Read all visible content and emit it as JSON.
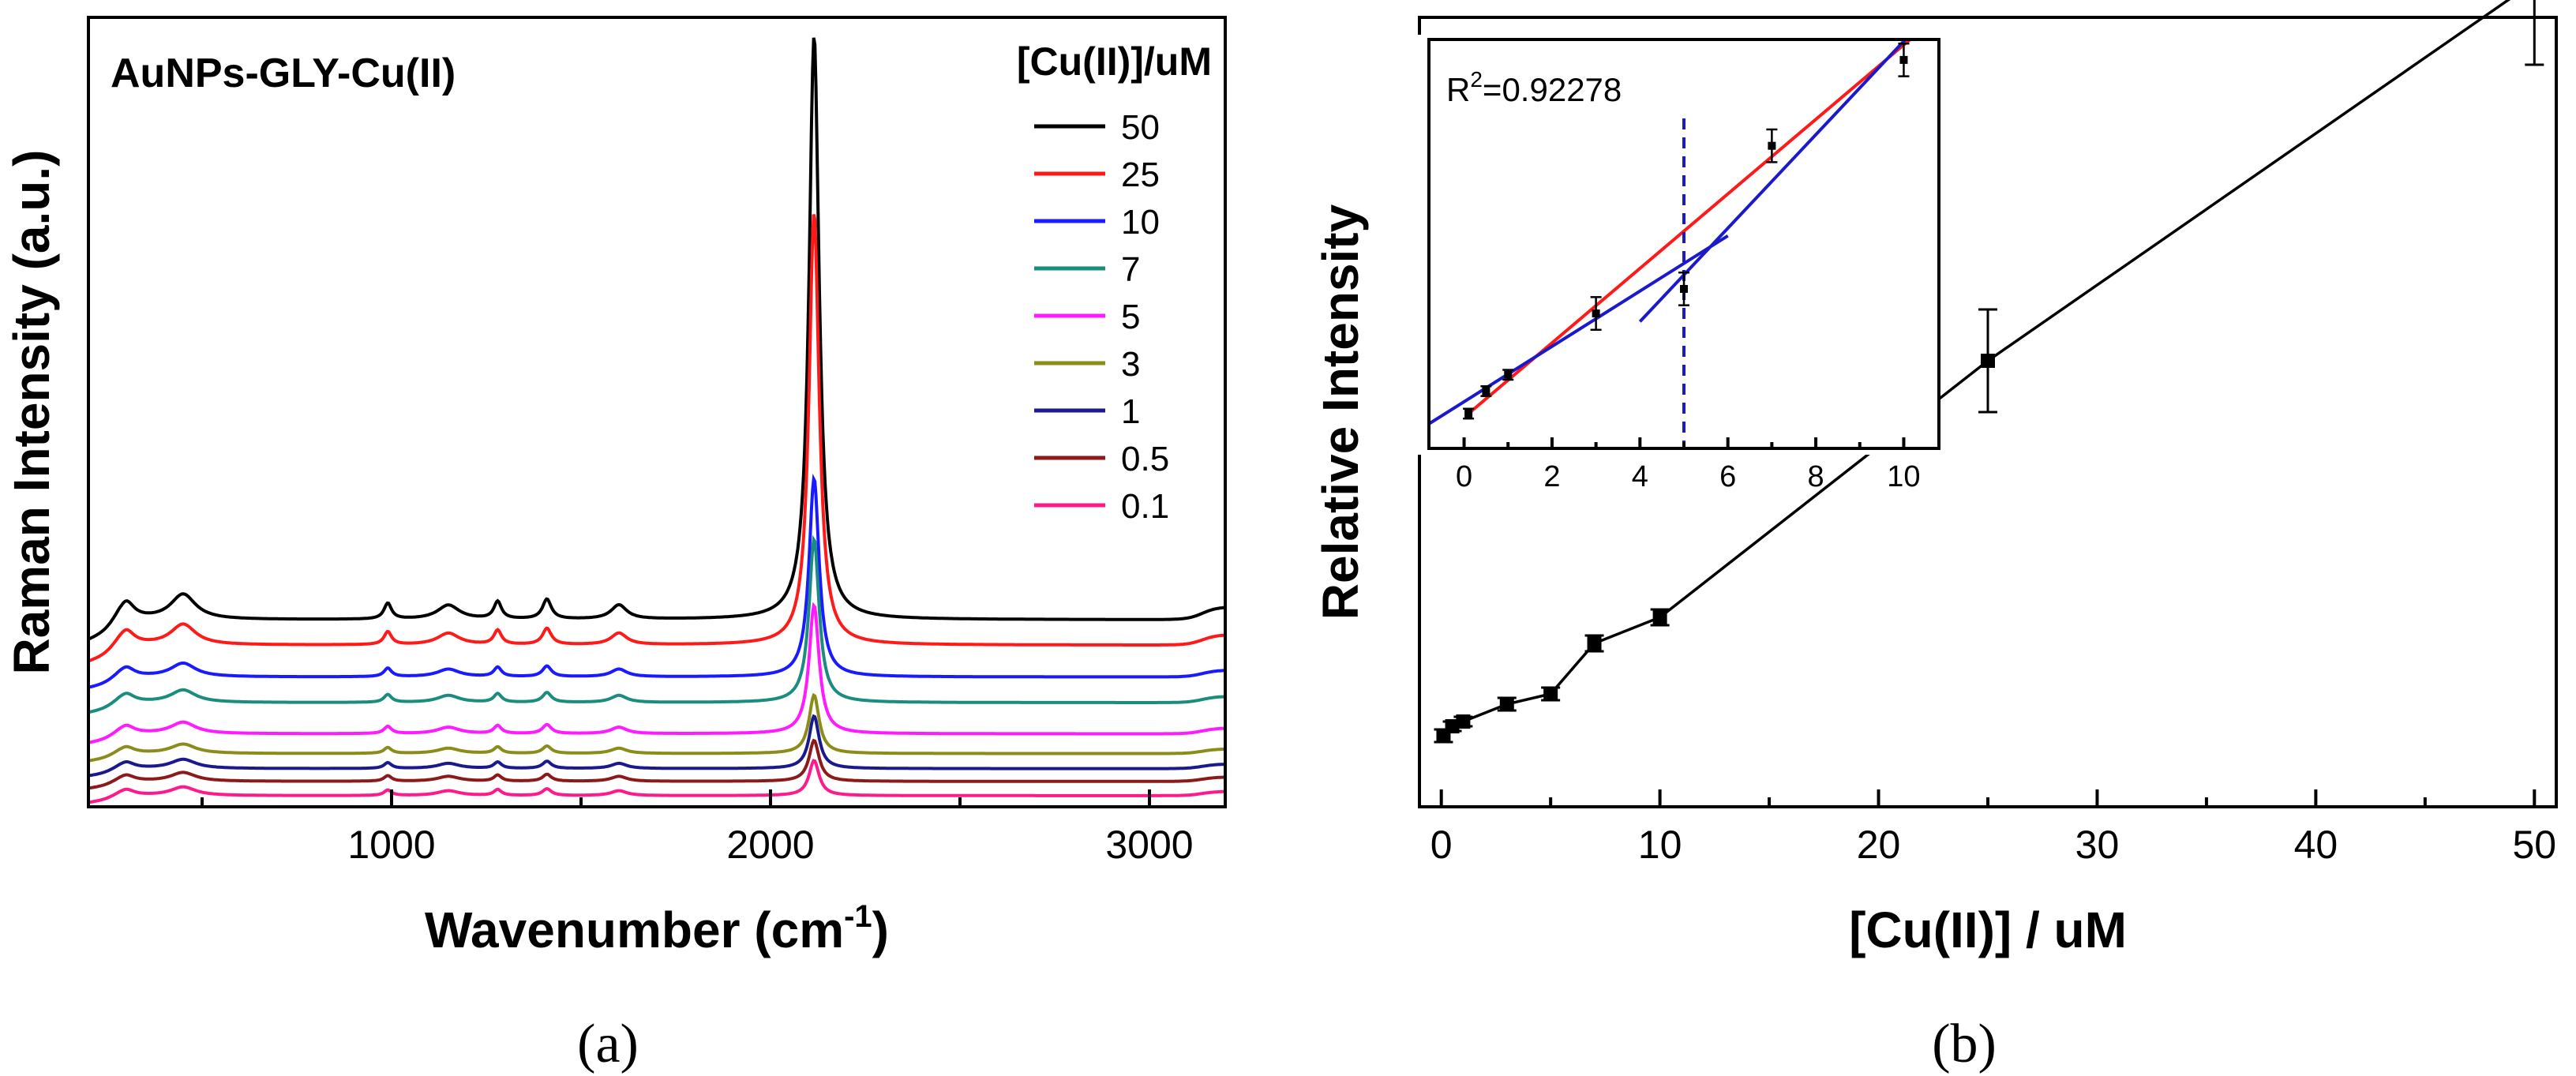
{
  "chart_data": [
    {
      "type": "line",
      "panel_label": "(a)",
      "title": "AuNPs-GLY-Cu(II)",
      "xlabel_main": "Wavenumber (cm",
      "xlabel_sup": "-1",
      "xlabel_tail": ")",
      "ylabel": "Raman Intensity (a.u.)",
      "xlim": [
        200,
        3200
      ],
      "ylim": [
        0,
        100
      ],
      "xticks": [
        1000,
        2000,
        3000
      ],
      "legend_title": "[Cu(II)]/uM",
      "legend_position": "top-right",
      "series": [
        {
          "name": "50",
          "color": "#000000",
          "baseline": 22.5,
          "scale": 1.0
        },
        {
          "name": "25",
          "color": "#ff1a1a",
          "baseline": 19.5,
          "scale": 0.74
        },
        {
          "name": "10",
          "color": "#1a1aff",
          "baseline": 15.8,
          "scale": 0.34
        },
        {
          "name": "7",
          "color": "#1a8c80",
          "baseline": 12.6,
          "scale": 0.28
        },
        {
          "name": "5",
          "color": "#ff1aff",
          "baseline": 8.7,
          "scale": 0.22
        },
        {
          "name": "3",
          "color": "#8c8c1a",
          "baseline": 6.3,
          "scale": 0.1
        },
        {
          "name": "1",
          "color": "#1a1a8c",
          "baseline": 4.4,
          "scale": 0.09
        },
        {
          "name": "0.5",
          "color": "#8c1a1a",
          "baseline": 2.8,
          "scale": 0.07
        },
        {
          "name": "0.1",
          "color": "#ff1a8c",
          "baseline": 1.0,
          "scale": 0.06
        }
      ],
      "peaks": [
        {
          "x": 300,
          "h": 2.2,
          "w": 25
        },
        {
          "x": 450,
          "h": 3.2,
          "w": 40
        },
        {
          "x": 990,
          "h": 2.0,
          "w": 12
        },
        {
          "x": 1150,
          "h": 1.8,
          "w": 35
        },
        {
          "x": 1280,
          "h": 2.2,
          "w": 12
        },
        {
          "x": 1410,
          "h": 2.5,
          "w": 14
        },
        {
          "x": 1600,
          "h": 1.8,
          "w": 25
        },
        {
          "x": 2115,
          "h": 74.0,
          "w": 16
        }
      ]
    },
    {
      "type": "line",
      "panel_label": "(b)",
      "xlabel": "[Cu(II)] / uM",
      "ylabel": "Relative Intensity",
      "xlim": [
        -1,
        51
      ],
      "ylim": [
        0,
        100
      ],
      "xticks": [
        0,
        10,
        20,
        30,
        40,
        50
      ],
      "x": [
        0.1,
        0.5,
        1,
        3,
        5,
        7,
        10,
        25,
        50
      ],
      "y": [
        9.0,
        10.2,
        10.8,
        13.0,
        14.3,
        20.7,
        24.0,
        56.5,
        104.5
      ],
      "err": [
        0.8,
        0.6,
        0.6,
        0.8,
        0.8,
        1.0,
        1.0,
        6.5,
        10.5
      ],
      "inset": {
        "annotation": "R²=0.92278",
        "r2_base": "R",
        "r2_sup": "2",
        "r2_value": "=0.92278",
        "xlim": [
          -0.8,
          10.8
        ],
        "ylim": [
          0,
          100
        ],
        "xticks": [
          0,
          2,
          4,
          6,
          8,
          10
        ],
        "x": [
          0.1,
          0.5,
          1,
          3,
          5,
          7,
          10
        ],
        "y": [
          8.5,
          14.0,
          18.0,
          33.0,
          39.0,
          74.0,
          95.0
        ],
        "err": [
          1.2,
          1.2,
          1.2,
          4.0,
          4.0,
          4.0,
          4.0
        ],
        "vline_x": 5,
        "lines": [
          {
            "color": "#ff1a1a",
            "x1": 0.1,
            "y1": 8.5,
            "x2": 10.2,
            "y2": 100.5
          },
          {
            "color": "#1a1acc",
            "x1": -0.8,
            "y1": 6.0,
            "x2": 6.0,
            "y2": 52.0
          },
          {
            "color": "#1a1acc",
            "x1": 4.0,
            "y1": 31.0,
            "x2": 10.3,
            "y2": 103.0
          }
        ]
      }
    }
  ]
}
